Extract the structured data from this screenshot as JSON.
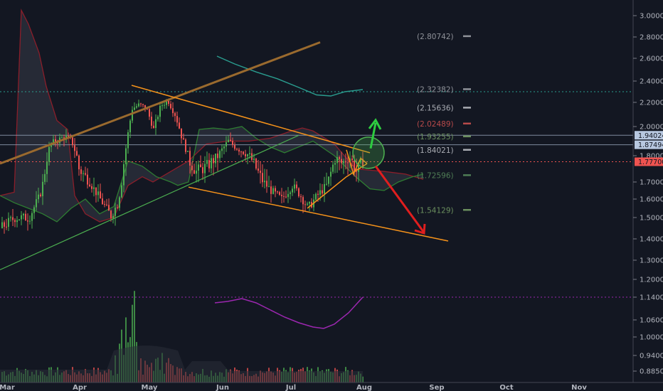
{
  "chart_data": {
    "type": "candlestick",
    "title": "",
    "y_axis": {
      "min": 0.83,
      "max": 3.08,
      "ticks": [
        "3.00000",
        "2.80000",
        "2.60000",
        "2.40000",
        "2.20000",
        "2.00000",
        "1.80000",
        "1.70000",
        "1.60000",
        "1.50000",
        "1.40000",
        "1.30000",
        "1.20000",
        "1.14000",
        "1.06000",
        "1.00000",
        "0.94000",
        "0.88500"
      ]
    },
    "x_axis": {
      "ticks": [
        "Mar",
        "Apr",
        "May",
        "Jun",
        "Jul",
        "Aug",
        "Sep",
        "Oct",
        "Nov"
      ]
    },
    "price_badges": [
      {
        "value": "1.94024",
        "color": "#b8c8e0"
      },
      {
        "value": "1.87494",
        "color": "#b8c8e0"
      },
      {
        "value": "1.77700",
        "color": "#ef5350"
      }
    ],
    "levels": [
      {
        "label": "(2.80742)",
        "value": 2.80742,
        "color": "#8f9299"
      },
      {
        "label": "(2.32382)",
        "value": 2.32382,
        "color": "#8f9299"
      },
      {
        "label": "(2.15636)",
        "value": 2.15636,
        "color": "#a9acb3"
      },
      {
        "label": "(2.02489)",
        "value": 2.02489,
        "color": "#b84a4a"
      },
      {
        "label": "(1.93255)",
        "value": 1.93255,
        "color": "#6b8f5e"
      },
      {
        "label": "(1.84021)",
        "value": 1.84021,
        "color": "#a9acb3"
      },
      {
        "label": "(1.72596)",
        "value": 1.72596,
        "color": "#4f7d55"
      },
      {
        "label": "(1.54129)",
        "value": 1.54129,
        "color": "#6b8f5e"
      }
    ],
    "horizontal_lines": [
      {
        "value": 2.3,
        "color": "#2a9d8f",
        "style": "dotted"
      },
      {
        "value": 1.94024,
        "color": "#9aa7bd",
        "style": "solid"
      },
      {
        "value": 1.87494,
        "color": "#9aa7bd",
        "style": "solid"
      },
      {
        "value": 1.777,
        "color": "#ef5350",
        "style": "dotted"
      },
      {
        "value": 1.14,
        "color": "#9c27b0",
        "style": "dotted"
      }
    ],
    "colors": {
      "up": "#26a69a",
      "up_bright": "#4caf50",
      "down": "#ef5350",
      "trendline": "#f7931a",
      "trendline_thick": "#9a6a2e",
      "support_green": "#4caf50",
      "cloud_red": "#8b1e2a",
      "cloud_green": "#2e7d32",
      "arrow_up": "#2ecc40",
      "arrow_down": "#e01e1e",
      "purple": "#9c27b0",
      "teal": "#2a9d8f"
    }
  }
}
